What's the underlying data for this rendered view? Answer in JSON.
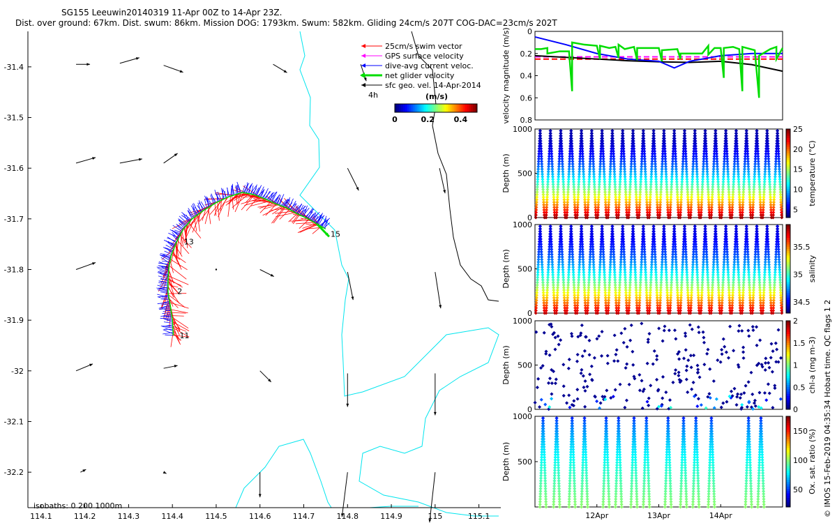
{
  "header": {
    "line1": "SG155 Leeuwin20140319 11-Apr 00Z to 14-Apr 23Z.",
    "line2": "Dist. over ground: 67km. Dist. swum: 86km. Mission DOG: 1793km. Swum: 582km. Gliding 24cm/s 207T COG-DAC=23cm/s 202T"
  },
  "colors": {
    "swim_vector": "#ff0000",
    "gps_velocity": "#ff00ff",
    "dac": "#0000ff",
    "net_glider": "#00dd00",
    "geo_velocity": "#000000",
    "coastline": "#00e5ee"
  },
  "chart_data": [
    {
      "id": "map",
      "type": "scatter",
      "title": "glider track map",
      "xlim": [
        114.07,
        115.15
      ],
      "ylim": [
        -32.27,
        -31.33
      ],
      "xticks": [
        114.1,
        114.2,
        114.3,
        114.4,
        114.5,
        114.6,
        114.7,
        114.8,
        114.9,
        115,
        115.1
      ],
      "xtick_labels": [
        "114.1",
        "114.2",
        "114.3",
        "114.4",
        "114.5",
        "114.6",
        "114.7",
        "114.8",
        "114.9",
        "115",
        "115.1"
      ],
      "yticks": [
        -31.4,
        -31.5,
        -31.6,
        -31.7,
        -31.8,
        -31.9,
        -32,
        -32.1,
        -32.2
      ],
      "ytick_labels": [
        "-31.4",
        "-31.5",
        "-31.6",
        "-31.7",
        "-31.8",
        "-31.9",
        "-32",
        "-32.1",
        "-32.2"
      ],
      "legend": [
        {
          "label": "25cm/s swim vector",
          "color": "#ff0000"
        },
        {
          "label": "GPS surface velocity",
          "color": "#ff00ff"
        },
        {
          "label": "dive-avg current veloc.",
          "color": "#0000ff"
        },
        {
          "label": "net glider velocity",
          "color": "#00dd00"
        },
        {
          "label": "sfc geo. vel. 14-Apr-2014",
          "color": "#000000"
        }
      ],
      "time_step_label": "4h",
      "colorbar": {
        "title": "(m/s)",
        "ticks": [
          "0",
          "0.2",
          "0.4"
        ],
        "range": [
          0,
          0.5
        ]
      },
      "isobaths_label": "isobaths: 0   200  1000m",
      "track_day_labels": [
        {
          "label": "11",
          "lon": 114.41,
          "lat": -31.93
        },
        {
          "label": "2",
          "lon": 114.405,
          "lat": -31.843
        },
        {
          "label": "13",
          "lon": 114.42,
          "lat": -31.745
        },
        {
          "label": "15",
          "lon": 114.755,
          "lat": -31.73
        }
      ],
      "track": [
        [
          114.402,
          -31.93
        ],
        [
          114.4,
          -31.9
        ],
        [
          114.395,
          -31.87
        ],
        [
          114.39,
          -31.845
        ],
        [
          114.39,
          -31.82
        ],
        [
          114.392,
          -31.795
        ],
        [
          114.398,
          -31.77
        ],
        [
          114.41,
          -31.745
        ],
        [
          114.425,
          -31.72
        ],
        [
          114.445,
          -31.7
        ],
        [
          114.47,
          -31.684
        ],
        [
          114.5,
          -31.668
        ],
        [
          114.53,
          -31.656
        ],
        [
          114.56,
          -31.648
        ],
        [
          114.585,
          -31.652
        ],
        [
          114.61,
          -31.66
        ],
        [
          114.635,
          -31.67
        ],
        [
          114.66,
          -31.678
        ],
        [
          114.685,
          -31.69
        ],
        [
          114.71,
          -31.7
        ],
        [
          114.73,
          -31.71
        ],
        [
          114.75,
          -31.72
        ]
      ],
      "geo_vectors": [
        {
          "lon": 114.18,
          "lat": -31.395,
          "u": 0.05,
          "v": 0.0
        },
        {
          "lon": 114.28,
          "lat": -31.393,
          "u": 0.07,
          "v": 0.02
        },
        {
          "lon": 114.38,
          "lat": -31.397,
          "u": 0.07,
          "v": -0.025
        },
        {
          "lon": 114.63,
          "lat": -31.395,
          "u": 0.05,
          "v": -0.03
        },
        {
          "lon": 114.83,
          "lat": -31.395,
          "u": 0.02,
          "v": -0.06
        },
        {
          "lon": 114.18,
          "lat": -31.59,
          "u": 0.07,
          "v": 0.02
        },
        {
          "lon": 114.28,
          "lat": -31.59,
          "u": 0.08,
          "v": 0.015
        },
        {
          "lon": 114.38,
          "lat": -31.59,
          "u": 0.05,
          "v": 0.035
        },
        {
          "lon": 114.8,
          "lat": -31.6,
          "u": 0.04,
          "v": -0.08
        },
        {
          "lon": 115.01,
          "lat": -31.6,
          "u": 0.02,
          "v": -0.09
        },
        {
          "lon": 114.18,
          "lat": -31.8,
          "u": 0.07,
          "v": 0.025
        },
        {
          "lon": 114.38,
          "lat": -31.795,
          "u": 0.02,
          "v": 0.0
        },
        {
          "lon": 114.5,
          "lat": -31.8,
          "u": 0.0,
          "v": 0.0
        },
        {
          "lon": 114.6,
          "lat": -31.8,
          "u": 0.05,
          "v": -0.025
        },
        {
          "lon": 114.8,
          "lat": -31.805,
          "u": 0.02,
          "v": -0.1
        },
        {
          "lon": 115.0,
          "lat": -31.805,
          "u": 0.02,
          "v": -0.13
        },
        {
          "lon": 114.18,
          "lat": -32.0,
          "u": 0.06,
          "v": 0.025
        },
        {
          "lon": 114.38,
          "lat": -31.995,
          "u": 0.05,
          "v": 0.01
        },
        {
          "lon": 114.6,
          "lat": -32.0,
          "u": 0.04,
          "v": -0.04
        },
        {
          "lon": 114.8,
          "lat": -32.005,
          "u": 0.0,
          "v": -0.12
        },
        {
          "lon": 115.0,
          "lat": -32.005,
          "u": 0.0,
          "v": -0.15
        },
        {
          "lon": 114.19,
          "lat": -32.2,
          "u": 0.02,
          "v": 0.01
        },
        {
          "lon": 114.38,
          "lat": -32.2,
          "u": 0.01,
          "v": -0.005
        },
        {
          "lon": 114.6,
          "lat": -32.2,
          "u": 0.0,
          "v": -0.09
        },
        {
          "lon": 114.8,
          "lat": -32.2,
          "u": -0.02,
          "v": -0.16
        },
        {
          "lon": 115.0,
          "lat": -32.2,
          "u": -0.02,
          "v": -0.18
        }
      ]
    },
    {
      "id": "velocity",
      "type": "line",
      "ylabel": "velocity magnitude (m/s)",
      "xlim": [
        11.0,
        15.0
      ],
      "ylim": [
        0,
        0.8
      ],
      "yticks": [
        0,
        0.2,
        0.4,
        0.6,
        0.8
      ],
      "ytick_labels": [
        "0",
        "0.2",
        "0.4",
        "0.6",
        "0.8"
      ],
      "series": [
        {
          "name": "swim speed 25cm/s",
          "color": "#ff0000",
          "style": "dashed",
          "x": [
            11.0,
            15.0
          ],
          "y": [
            0.25,
            0.25
          ]
        },
        {
          "name": "GPS surface velocity",
          "color": "#ff00ff",
          "style": "dashed",
          "x": [
            11.0,
            15.0
          ],
          "y": [
            0.23,
            0.23
          ]
        },
        {
          "name": "geostrophic",
          "color": "#000000",
          "style": "solid",
          "x": [
            11.0,
            11.5,
            12.0,
            12.5,
            13.0,
            13.5,
            14.0,
            14.5,
            15.0
          ],
          "y": [
            0.22,
            0.235,
            0.25,
            0.265,
            0.275,
            0.28,
            0.27,
            0.3,
            0.36
          ]
        },
        {
          "name": "dive-avg current",
          "color": "#0000ff",
          "style": "solid",
          "x": [
            11.0,
            11.5,
            12.0,
            12.5,
            13.0,
            13.25,
            13.5,
            14.0,
            14.5,
            15.0
          ],
          "y": [
            0.05,
            0.12,
            0.2,
            0.25,
            0.27,
            0.33,
            0.27,
            0.22,
            0.2,
            0.2
          ]
        },
        {
          "name": "net glider velocity",
          "color": "#00dd00",
          "style": "solid",
          "x": [
            11.0,
            11.1,
            11.2,
            11.2,
            11.4,
            11.55,
            11.6,
            11.6,
            11.8,
            12.0,
            12.05,
            12.05,
            12.2,
            12.3,
            12.35,
            12.35,
            12.45,
            12.6,
            12.65,
            12.65,
            12.9,
            13.0,
            13.05,
            13.05,
            13.3,
            13.35,
            13.35,
            13.7,
            13.8,
            13.8,
            13.9,
            14.0,
            14.05,
            14.05,
            14.2,
            14.3,
            14.35,
            14.35,
            14.55,
            14.62,
            14.62,
            14.8,
            14.9,
            14.9,
            15.0
          ],
          "y": [
            0.16,
            0.16,
            0.15,
            0.2,
            0.18,
            0.18,
            0.54,
            0.1,
            0.12,
            0.13,
            0.25,
            0.13,
            0.15,
            0.14,
            0.24,
            0.12,
            0.16,
            0.14,
            0.26,
            0.15,
            0.15,
            0.15,
            0.27,
            0.17,
            0.16,
            0.25,
            0.2,
            0.2,
            0.13,
            0.21,
            0.15,
            0.15,
            0.42,
            0.15,
            0.14,
            0.16,
            0.54,
            0.14,
            0.17,
            0.6,
            0.22,
            0.16,
            0.14,
            0.25,
            0.15
          ]
        }
      ]
    },
    {
      "id": "temperature",
      "type": "scatter",
      "ylabel": "Depth (m)",
      "colorbar_label": "temperature (°C)",
      "ylim": [
        1000,
        0
      ],
      "yticks": [
        0,
        500,
        1000
      ],
      "ytick_labels": [
        "0",
        "500",
        "1000"
      ],
      "cbar_range": [
        3,
        25
      ],
      "cbar_ticks": [
        5,
        10,
        15,
        20,
        25
      ],
      "cbar_tick_labels": [
        "5",
        "10",
        "15",
        "20",
        "25"
      ],
      "dives": 24,
      "max_depth": 980,
      "surface_value": 24.5,
      "bottom_value": 4.0
    },
    {
      "id": "salinity",
      "type": "scatter",
      "ylabel": "Depth (m)",
      "colorbar_label": "salinity",
      "ylim": [
        1000,
        0
      ],
      "yticks": [
        0,
        500,
        1000
      ],
      "ytick_labels": [
        "0",
        "500",
        "1000"
      ],
      "cbar_range": [
        34.3,
        35.9
      ],
      "cbar_ticks": [
        34.5,
        35,
        35.5
      ],
      "cbar_tick_labels": [
        "34.5",
        "35",
        "35.5"
      ],
      "dives": 24,
      "max_depth": 980,
      "surface_value": 35.8,
      "bottom_value": 34.45
    },
    {
      "id": "chla",
      "type": "scatter",
      "ylabel": "Depth (m)",
      "colorbar_label": "chl-a (mg m-3)",
      "ylim": [
        1000,
        0
      ],
      "yticks": [
        0,
        500,
        1000
      ],
      "ytick_labels": [
        "0",
        "500",
        "1000"
      ],
      "cbar_range": [
        0,
        2
      ],
      "cbar_ticks": [
        0,
        0.5,
        1,
        1.5,
        2
      ],
      "cbar_tick_labels": [
        "0",
        "0.5",
        "1",
        "1.5",
        "2"
      ],
      "points": 260,
      "value": 0.02
    },
    {
      "id": "oxygen",
      "type": "scatter",
      "ylabel": "Depth (m)",
      "colorbar_label": "Ox. sat. ratio (%)",
      "ylim": [
        1000,
        0
      ],
      "yticks": [
        500,
        1000
      ],
      "ytick_labels": [
        "500",
        "1000"
      ],
      "cbar_range": [
        20,
        175
      ],
      "cbar_ticks": [
        50,
        100,
        150
      ],
      "cbar_tick_labels": [
        "50",
        "100",
        "150"
      ],
      "dive_starts": [
        11.08,
        11.3,
        11.55,
        11.75,
        12.1,
        12.3,
        12.55,
        12.75,
        13.1,
        13.35,
        13.55,
        13.8,
        14.4,
        14.6
      ],
      "xlim": [
        11.0,
        15.0
      ],
      "xticks": [
        12,
        13,
        14
      ],
      "xtick_labels": [
        "12Apr",
        "13Apr",
        "14Apr"
      ],
      "surface_value": 100,
      "bottom_value": 45
    }
  ],
  "side_note": "© IMOS 15-Feb-2019 04:35:34 Hobart time. QC flags 1  2"
}
